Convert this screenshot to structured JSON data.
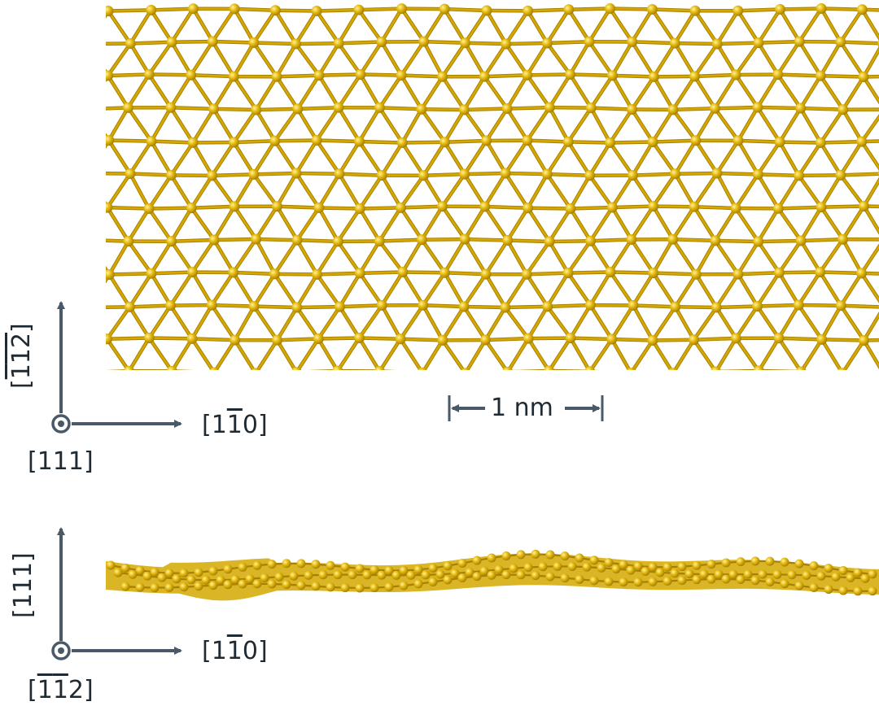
{
  "top_panel": {
    "axes": {
      "vertical": {
        "pre": "[",
        "b1": "1",
        "b2": "1",
        "b3": "2",
        "post": "]"
      },
      "horizontal": {
        "pre": "[1",
        "bar": "1",
        "post": "0]"
      },
      "out_of_plane": "[111]"
    },
    "scale_bar": {
      "label": "1 nm"
    }
  },
  "bottom_panel": {
    "axes": {
      "vertical": "[111]",
      "horizontal": {
        "pre": "[1",
        "bar": "1",
        "post": "0]"
      },
      "out_of_plane": {
        "pre": "[",
        "b1": "1",
        "b2": "1",
        "post": "2]"
      }
    }
  },
  "colors": {
    "gold": "#d4a800",
    "gold_dark": "#a87f00",
    "gold_light": "#f3d24a",
    "axis": "#4a5968",
    "text": "#1f2a33"
  }
}
